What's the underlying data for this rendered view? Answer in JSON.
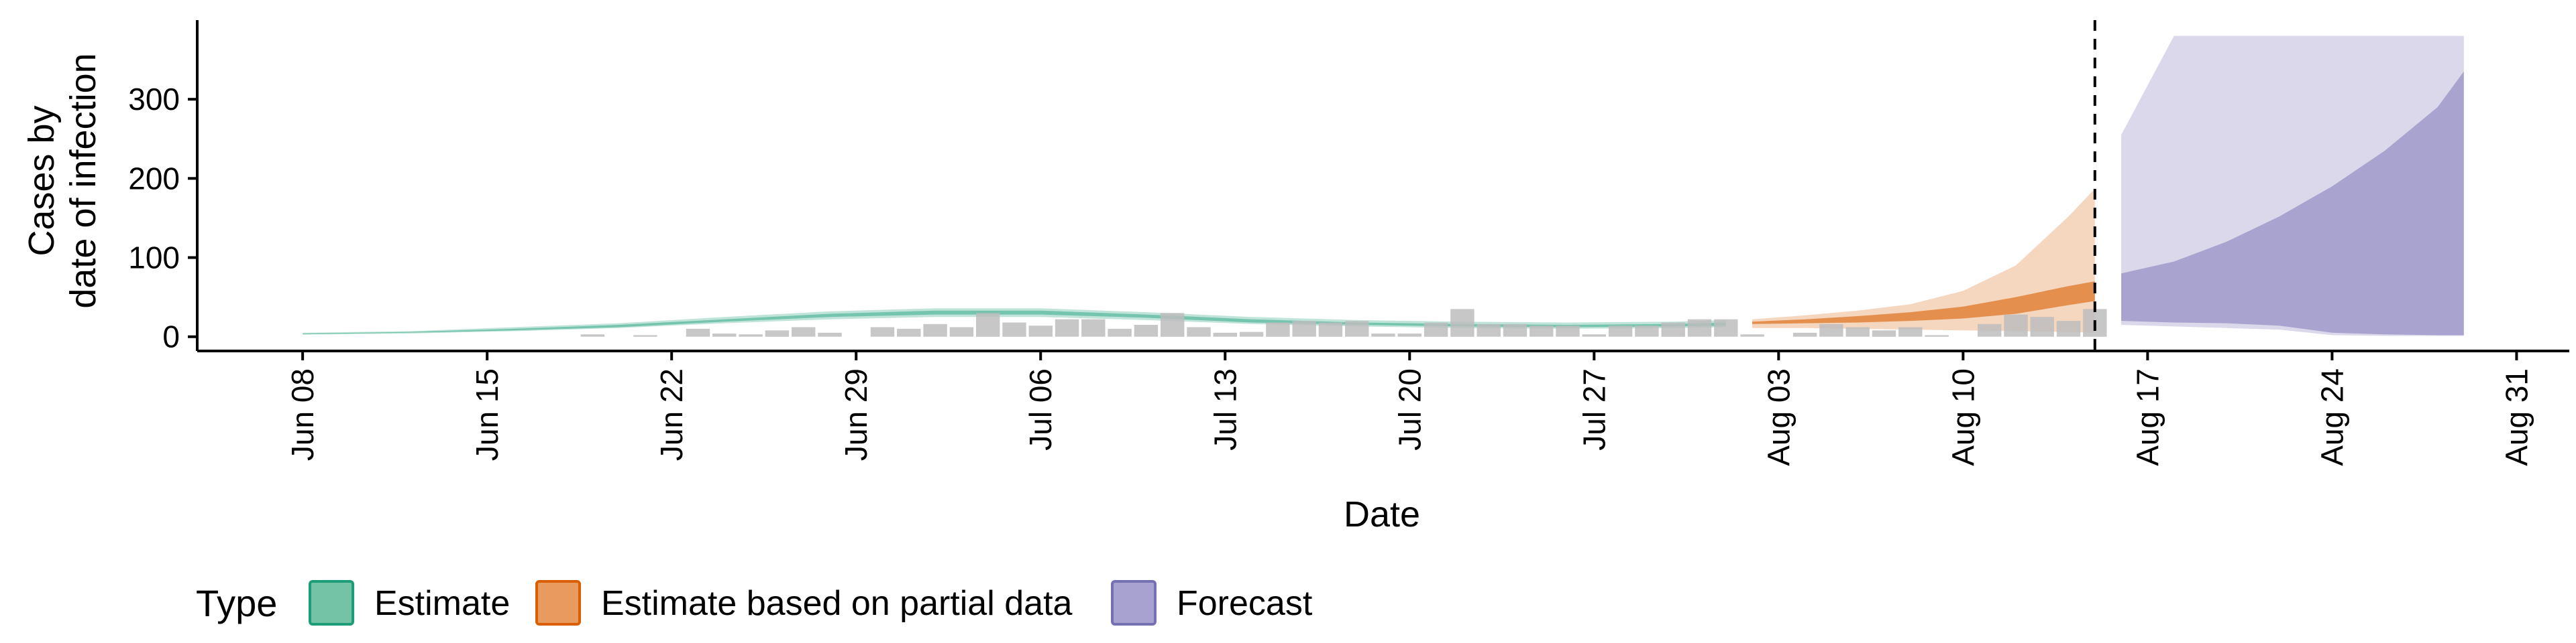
{
  "chart_data": {
    "type": "area",
    "xlabel": "Date",
    "ylabel_lines": [
      "Cases by",
      "date of infection"
    ],
    "x_range": [
      "2020-06-04",
      "2020-09-02"
    ],
    "ylim": [
      -18,
      400
    ],
    "y_ticks": [
      0,
      100,
      200,
      300
    ],
    "x_ticks": [
      "Jun 08",
      "Jun 15",
      "Jun 22",
      "Jun 29",
      "Jul 06",
      "Jul 13",
      "Jul 20",
      "Jul 27",
      "Aug 03",
      "Aug 10",
      "Aug 17",
      "Aug 24",
      "Aug 31"
    ],
    "x_tick_dates": [
      "2020-06-08",
      "2020-06-15",
      "2020-06-22",
      "2020-06-29",
      "2020-07-06",
      "2020-07-13",
      "2020-07-20",
      "2020-07-27",
      "2020-08-03",
      "2020-08-10",
      "2020-08-17",
      "2020-08-24",
      "2020-08-31"
    ],
    "forecast_date": "2020-08-15",
    "grid": false,
    "legend": {
      "title": "Type",
      "position": "bottom-left",
      "items": [
        {
          "label": "Estimate",
          "fill": "#74c3a7",
          "stroke": "#1b9e77"
        },
        {
          "label": "Estimate based on partial data",
          "fill": "#e99a5f",
          "stroke": "#d95f02"
        },
        {
          "label": "Forecast",
          "fill": "#a7a2d0",
          "stroke": "#7570b3"
        }
      ]
    },
    "series": [
      {
        "name": "Estimate",
        "color": "#1b9e77",
        "x": [
          "2020-06-08",
          "2020-06-12",
          "2020-06-16",
          "2020-06-20",
          "2020-06-24",
          "2020-06-28",
          "2020-07-02",
          "2020-07-06",
          "2020-07-10",
          "2020-07-14",
          "2020-07-18",
          "2020-07-22",
          "2020-07-26",
          "2020-07-30",
          "2020-08-01"
        ],
        "lower90": [
          3,
          4,
          7,
          11,
          17,
          22,
          25,
          25,
          21,
          16,
          13,
          11,
          10,
          11,
          12
        ],
        "upper90": [
          5,
          7,
          12,
          17,
          25,
          32,
          36,
          36,
          31,
          25,
          21,
          19,
          18,
          19,
          21
        ],
        "lower50": [
          3,
          5,
          8,
          12,
          19,
          25,
          28,
          28,
          24,
          18,
          15,
          13,
          12,
          13,
          14
        ],
        "upper50": [
          4,
          6,
          10,
          15,
          22,
          29,
          33,
          33,
          28,
          22,
          18,
          16,
          15,
          16,
          18
        ]
      },
      {
        "name": "Estimate based on partial data",
        "color": "#d95f02",
        "x": [
          "2020-08-02",
          "2020-08-04",
          "2020-08-06",
          "2020-08-08",
          "2020-08-10",
          "2020-08-12",
          "2020-08-14",
          "2020-08-15"
        ],
        "lower90": [
          11,
          11,
          10,
          9,
          8,
          7,
          6,
          5
        ],
        "upper90": [
          22,
          27,
          33,
          41,
          58,
          90,
          152,
          187
        ],
        "lower50": [
          16,
          17,
          18,
          20,
          23,
          29,
          40,
          45
        ],
        "upper50": [
          19,
          22,
          26,
          31,
          38,
          50,
          64,
          70
        ]
      },
      {
        "name": "Forecast",
        "color": "#7570b3",
        "x": [
          "2020-08-16",
          "2020-08-18",
          "2020-08-20",
          "2020-08-22",
          "2020-08-24",
          "2020-08-26",
          "2020-08-28",
          "2020-08-29"
        ],
        "lower90": [
          15,
          13,
          11,
          9,
          2,
          1,
          1,
          1
        ],
        "upper90": [
          255,
          380,
          380,
          380,
          380,
          380,
          380,
          380
        ],
        "lower50": [
          20,
          18,
          17,
          14,
          5,
          3,
          2,
          2
        ],
        "upper50": [
          80,
          95,
          120,
          152,
          190,
          235,
          290,
          335
        ]
      }
    ],
    "reported_cases": {
      "color": "#bdbdbd",
      "x": [
        "2020-06-19",
        "2020-06-21",
        "2020-06-23",
        "2020-06-24",
        "2020-06-25",
        "2020-06-26",
        "2020-06-27",
        "2020-06-28",
        "2020-06-30",
        "2020-07-01",
        "2020-07-02",
        "2020-07-03",
        "2020-07-04",
        "2020-07-05",
        "2020-07-06",
        "2020-07-07",
        "2020-07-08",
        "2020-07-09",
        "2020-07-10",
        "2020-07-11",
        "2020-07-12",
        "2020-07-13",
        "2020-07-14",
        "2020-07-15",
        "2020-07-16",
        "2020-07-17",
        "2020-07-18",
        "2020-07-19",
        "2020-07-20",
        "2020-07-21",
        "2020-07-22",
        "2020-07-23",
        "2020-07-24",
        "2020-07-25",
        "2020-07-26",
        "2020-07-27",
        "2020-07-28",
        "2020-07-29",
        "2020-07-30",
        "2020-07-31",
        "2020-08-01",
        "2020-08-02",
        "2020-08-04",
        "2020-08-05",
        "2020-08-06",
        "2020-08-07",
        "2020-08-08",
        "2020-08-09",
        "2020-08-11",
        "2020-08-12",
        "2020-08-13",
        "2020-08-14",
        "2020-08-15"
      ],
      "values": [
        3,
        2,
        10,
        4,
        3,
        8,
        12,
        5,
        12,
        10,
        16,
        12,
        30,
        18,
        14,
        22,
        22,
        10,
        15,
        30,
        12,
        5,
        6,
        18,
        20,
        18,
        20,
        4,
        4,
        18,
        35,
        16,
        16,
        14,
        14,
        3,
        14,
        14,
        18,
        22,
        22,
        3,
        5,
        16,
        12,
        8,
        12,
        2,
        16,
        28,
        25,
        20,
        35
      ]
    }
  }
}
